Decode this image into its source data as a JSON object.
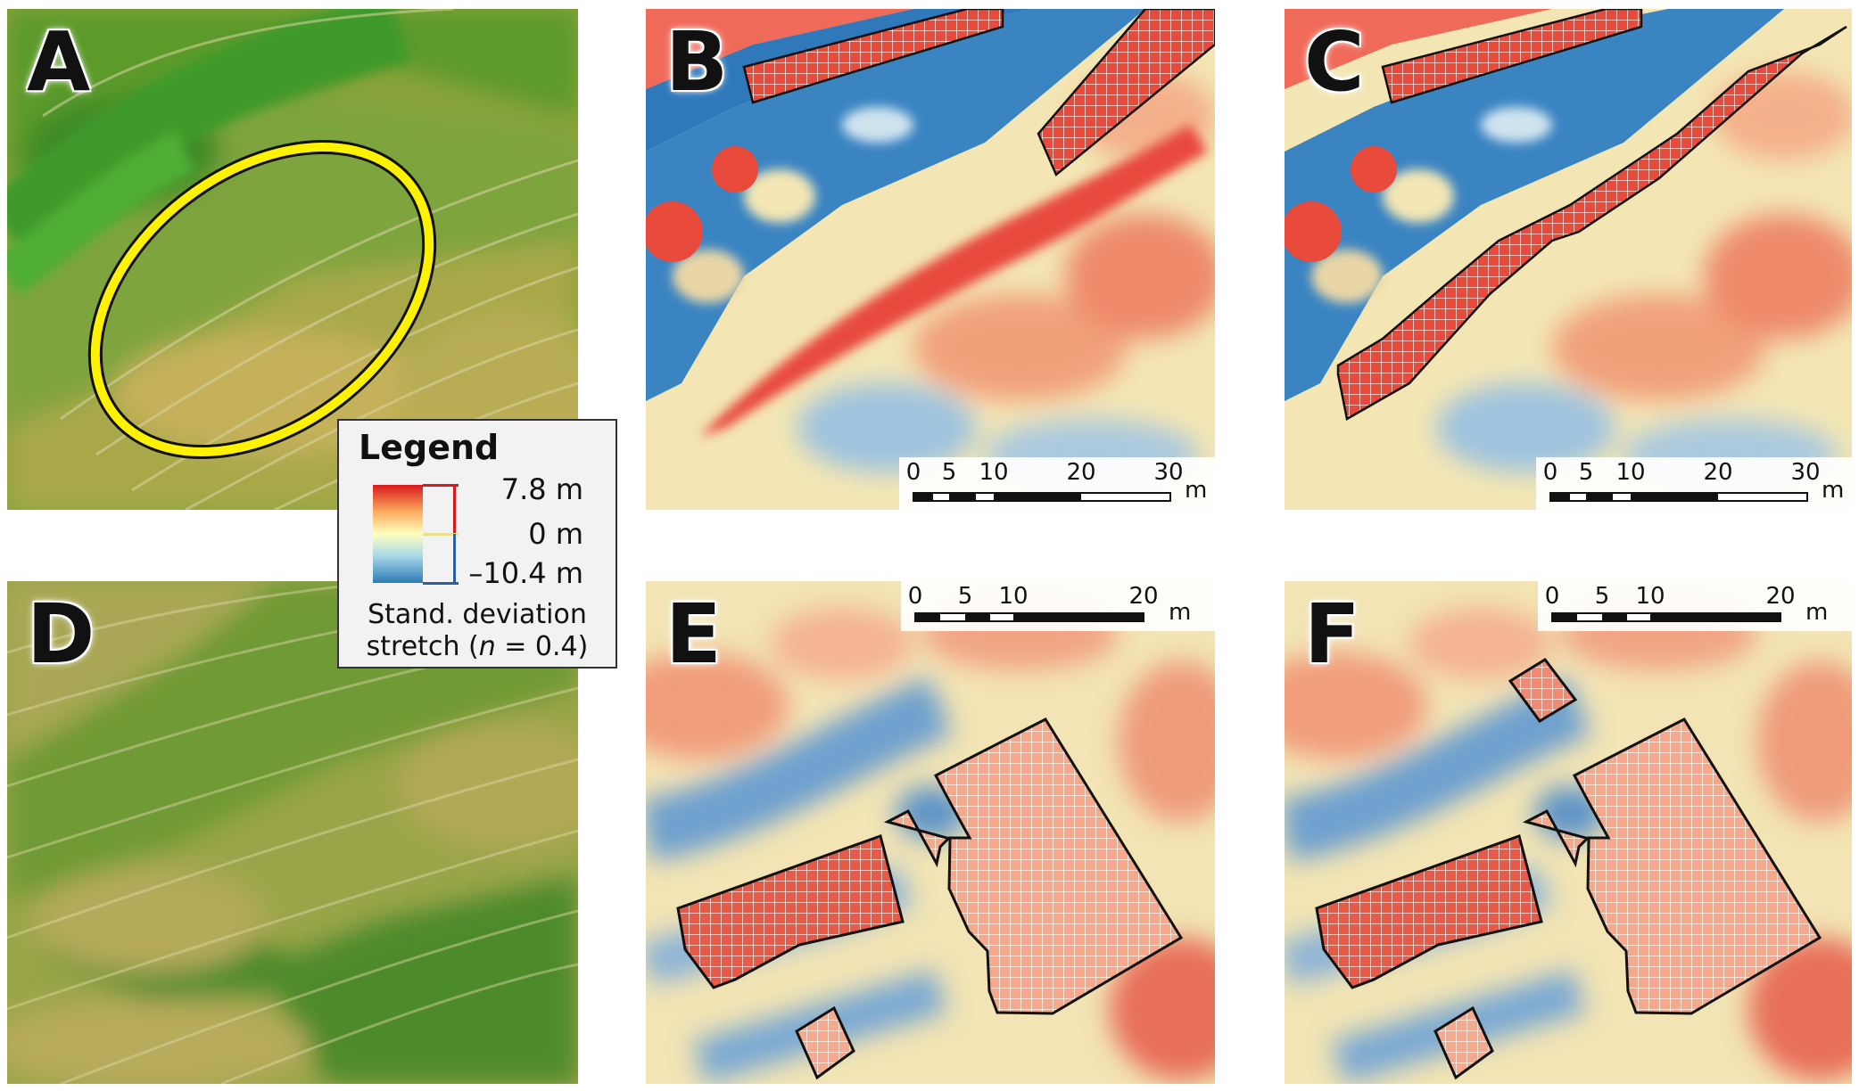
{
  "panels": {
    "A": {
      "label": "A"
    },
    "B": {
      "label": "B"
    },
    "C": {
      "label": "C"
    },
    "D": {
      "label": "D"
    },
    "E": {
      "label": "E"
    },
    "F": {
      "label": "F"
    }
  },
  "scalebar_30": {
    "ticks": [
      "0",
      "5",
      "10",
      "20",
      "30"
    ],
    "unit": "m"
  },
  "scalebar_20": {
    "ticks": [
      "0",
      "5",
      "10",
      "20"
    ],
    "unit": "m"
  },
  "legend": {
    "title": "Legend",
    "max": "7.8 m",
    "mid": "0 m",
    "min": "–10.4 m",
    "note_line1": "Stand. deviation",
    "note_line2_prefix": "stretch (",
    "note_line2_var": "n",
    "note_line2_suffix": " = 0.4)"
  },
  "colors": {
    "high": "#d7191c",
    "midhigh": "#fdae61",
    "mid": "#ffffbf",
    "midlow": "#abd9e9",
    "low": "#2c7bb6",
    "ellipse": "#fff200"
  }
}
